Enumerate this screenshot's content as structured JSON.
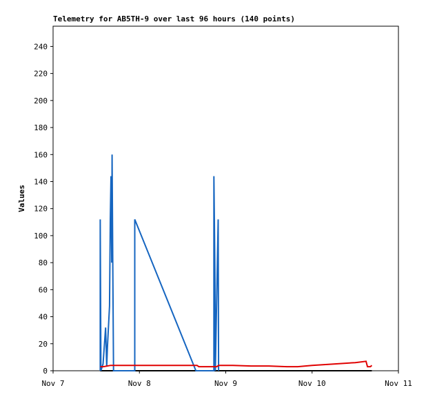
{
  "chart_data": {
    "type": "line",
    "title": "Telemetry for AB5TH-9 over last 96 hours (140 points)",
    "y_label": "Values",
    "xlim": [
      0,
      96
    ],
    "xticks": [
      {
        "value": 0,
        "label": "Nov 7"
      },
      {
        "value": 24,
        "label": "Nov 8"
      },
      {
        "value": 48,
        "label": "Nov 9"
      },
      {
        "value": 72,
        "label": "Nov 10"
      },
      {
        "value": 96,
        "label": "Nov 11"
      }
    ],
    "ylim": [
      0,
      255
    ],
    "yticks": [
      0,
      20,
      40,
      60,
      80,
      100,
      120,
      140,
      160,
      180,
      200,
      220,
      240
    ],
    "series": [
      {
        "color": "#000000",
        "x": [
          13.1,
          88.6
        ],
        "values": [
          0,
          0
        ]
      },
      {
        "color": "#1565c0",
        "x": [
          13.1,
          13.1,
          13.3,
          13.9,
          14.6,
          14.9,
          15.1,
          15.7,
          15.9,
          16.1,
          16.3,
          16.4,
          16.6,
          16.8,
          22.7,
          22.7,
          39.7,
          44.7,
          44.7,
          45.0,
          45.1,
          45.9,
          46.0
        ],
        "values": [
          0,
          112,
          0,
          5,
          32,
          3,
          17,
          48,
          112,
          144,
          80,
          160,
          80,
          0,
          0,
          112,
          0,
          0,
          144,
          72,
          0,
          112,
          0
        ]
      },
      {
        "color": "#e00000",
        "x": [
          13.1,
          14.0,
          16.0,
          40.0,
          40.5,
          45.5,
          46.0,
          50.0,
          55.0,
          60.0,
          65.0,
          68.0,
          72.0,
          78.0,
          84.0,
          87.0,
          87.4,
          88.2,
          88.6
        ],
        "values": [
          3,
          3,
          4,
          4,
          3,
          3,
          4,
          4,
          3.5,
          3.5,
          3,
          3,
          4,
          5,
          6,
          7,
          3,
          3,
          4
        ]
      }
    ]
  }
}
